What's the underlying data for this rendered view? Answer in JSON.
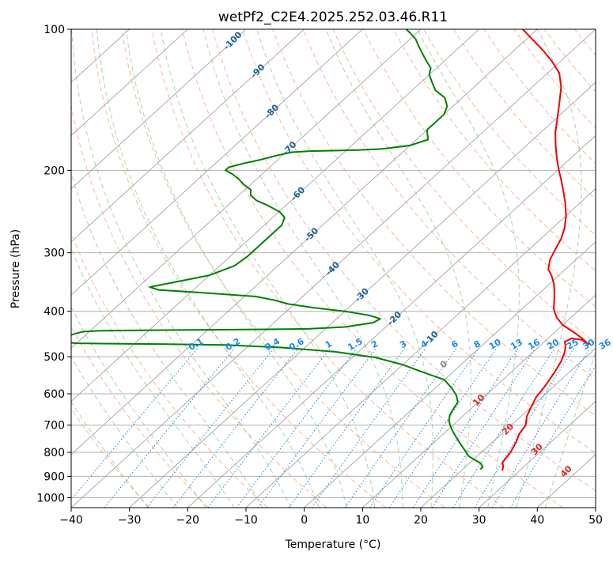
{
  "chart_data": {
    "type": "line",
    "title": "wetPf2_C2E4.2025.252.03.46.R11",
    "xlabel": "Temperature (°C)",
    "ylabel": "Pressure (hPa)",
    "xlim": [
      -40,
      50
    ],
    "ylim": [
      1050,
      100
    ],
    "y_scale": "log",
    "grid": true,
    "x_ticks": [
      -40,
      -30,
      -20,
      -10,
      0,
      10,
      20,
      30,
      40,
      50
    ],
    "y_ticks": [
      100,
      200,
      300,
      400,
      500,
      600,
      700,
      800,
      900,
      1000
    ],
    "series": [
      {
        "color": "#ee0000",
        "points": [
          [
            27,
            875
          ],
          [
            26.5,
            860
          ],
          [
            25.5,
            840
          ],
          [
            25,
            800
          ],
          [
            24,
            760
          ],
          [
            23,
            730
          ],
          [
            22.5,
            700
          ],
          [
            21,
            670
          ],
          [
            20,
            640
          ],
          [
            19,
            610
          ],
          [
            18.5,
            580
          ],
          [
            17.5,
            540
          ],
          [
            16.5,
            510
          ],
          [
            15.5,
            490
          ],
          [
            14.5,
            475
          ],
          [
            13.5,
            465
          ],
          [
            14,
            457
          ],
          [
            16,
            460
          ],
          [
            18,
            470
          ],
          [
            15.5,
            455
          ],
          [
            13,
            442
          ],
          [
            10,
            428
          ],
          [
            7.5,
            412
          ],
          [
            5.5,
            396
          ],
          [
            4,
            380
          ],
          [
            2.5,
            365
          ],
          [
            0.8,
            350
          ],
          [
            -1,
            337
          ],
          [
            -3,
            325
          ],
          [
            -4.5,
            310
          ],
          [
            -5.5,
            295
          ],
          [
            -6.5,
            280
          ],
          [
            -8,
            265
          ],
          [
            -10,
            250
          ],
          [
            -12.5,
            235
          ],
          [
            -15,
            222
          ],
          [
            -17.5,
            210
          ],
          [
            -20,
            199
          ],
          [
            -22.5,
            188
          ],
          [
            -25,
            177
          ],
          [
            -27.5,
            166
          ],
          [
            -30,
            154
          ],
          [
            -32.5,
            143
          ],
          [
            -35,
            133
          ],
          [
            -38,
            124
          ],
          [
            -41.5,
            117
          ],
          [
            -45,
            111
          ],
          [
            -49,
            105
          ],
          [
            -52.5,
            100
          ]
        ]
      },
      {
        "color": "#008000",
        "points": [
          [
            23,
            870
          ],
          [
            23,
            860
          ],
          [
            22,
            845
          ],
          [
            20.5,
            832
          ],
          [
            18.5,
            815
          ],
          [
            17,
            795
          ],
          [
            15,
            770
          ],
          [
            13,
            745
          ],
          [
            11,
            720
          ],
          [
            9.5,
            700
          ],
          [
            8.5,
            685
          ],
          [
            7.5,
            665
          ],
          [
            7,
            645
          ],
          [
            6.5,
            625
          ],
          [
            5,
            605
          ],
          [
            3,
            585
          ],
          [
            0,
            560
          ],
          [
            -5,
            540
          ],
          [
            -10,
            520
          ],
          [
            -16,
            502
          ],
          [
            -24,
            488
          ],
          [
            -34,
            478
          ],
          [
            -44,
            472
          ],
          [
            -54,
            470
          ],
          [
            -64,
            469
          ],
          [
            -70,
            468
          ],
          [
            -73,
            465
          ],
          [
            -74,
            460
          ],
          [
            -73,
            453
          ],
          [
            -72,
            446
          ],
          [
            -71,
            442
          ],
          [
            -68,
            440
          ],
          [
            -60,
            439
          ],
          [
            -48,
            438
          ],
          [
            -40,
            437
          ],
          [
            -33,
            436
          ],
          [
            -27,
            432
          ],
          [
            -23,
            423
          ],
          [
            -22.5,
            415
          ],
          [
            -25,
            408
          ],
          [
            -30,
            400
          ],
          [
            -36,
            393
          ],
          [
            -41,
            386
          ],
          [
            -44,
            379
          ],
          [
            -48,
            372
          ],
          [
            -58,
            365
          ],
          [
            -66,
            360
          ],
          [
            -68,
            355
          ],
          [
            -64,
            345
          ],
          [
            -60,
            335
          ],
          [
            -57.5,
            320
          ],
          [
            -57,
            305
          ],
          [
            -57,
            290
          ],
          [
            -57,
            275
          ],
          [
            -57,
            262
          ],
          [
            -58,
            252
          ],
          [
            -60,
            245
          ],
          [
            -63,
            238
          ],
          [
            -66,
            232
          ],
          [
            -68,
            226
          ],
          [
            -69,
            220
          ],
          [
            -71,
            215
          ],
          [
            -73,
            209
          ],
          [
            -75,
            204
          ],
          [
            -77,
            200
          ],
          [
            -77,
            197
          ],
          [
            -75,
            193
          ],
          [
            -73,
            190
          ],
          [
            -71,
            186
          ],
          [
            -69,
            183
          ],
          [
            -66,
            182
          ],
          [
            -58,
            181
          ],
          [
            -54,
            180
          ],
          [
            -50,
            177
          ],
          [
            -48,
            172
          ],
          [
            -49,
            168
          ],
          [
            -50,
            164
          ],
          [
            -50,
            158
          ],
          [
            -50,
            152
          ],
          [
            -51,
            146
          ],
          [
            -53,
            140
          ],
          [
            -56,
            135
          ],
          [
            -58,
            130
          ],
          [
            -60,
            125
          ],
          [
            -61,
            121
          ],
          [
            -63,
            117
          ],
          [
            -65,
            113
          ],
          [
            -67,
            109
          ],
          [
            -69,
            105
          ],
          [
            -71,
            102
          ],
          [
            -72.5,
            100
          ]
        ]
      }
    ],
    "temperature_labels": [
      "-100",
      "-90",
      "-80",
      "-70",
      "-60",
      "-50",
      "-40",
      "-30",
      "-20",
      "-10"
    ],
    "mixing_ratio_labels": [
      "0.1",
      "0.2",
      "0.4",
      "0.6",
      "1",
      "1.5",
      "2",
      "3",
      "4",
      "6",
      "8",
      "10",
      "13",
      "16",
      "20",
      "25",
      "30",
      "36"
    ],
    "theta_labels": [
      "0",
      "10",
      "20",
      "30",
      "40"
    ],
    "colors": {
      "temperature_line": "#ee0000",
      "dewpoint_line": "#008000",
      "dry_adiabat": "#f4a582",
      "moist_adiabat": "#86c286",
      "mixing_ratio": "#1e88e5",
      "isotherm": "#999999",
      "isotherm_label": "#1f5f9a",
      "theta_label": "#d62728",
      "zero_label": "#888888"
    }
  }
}
